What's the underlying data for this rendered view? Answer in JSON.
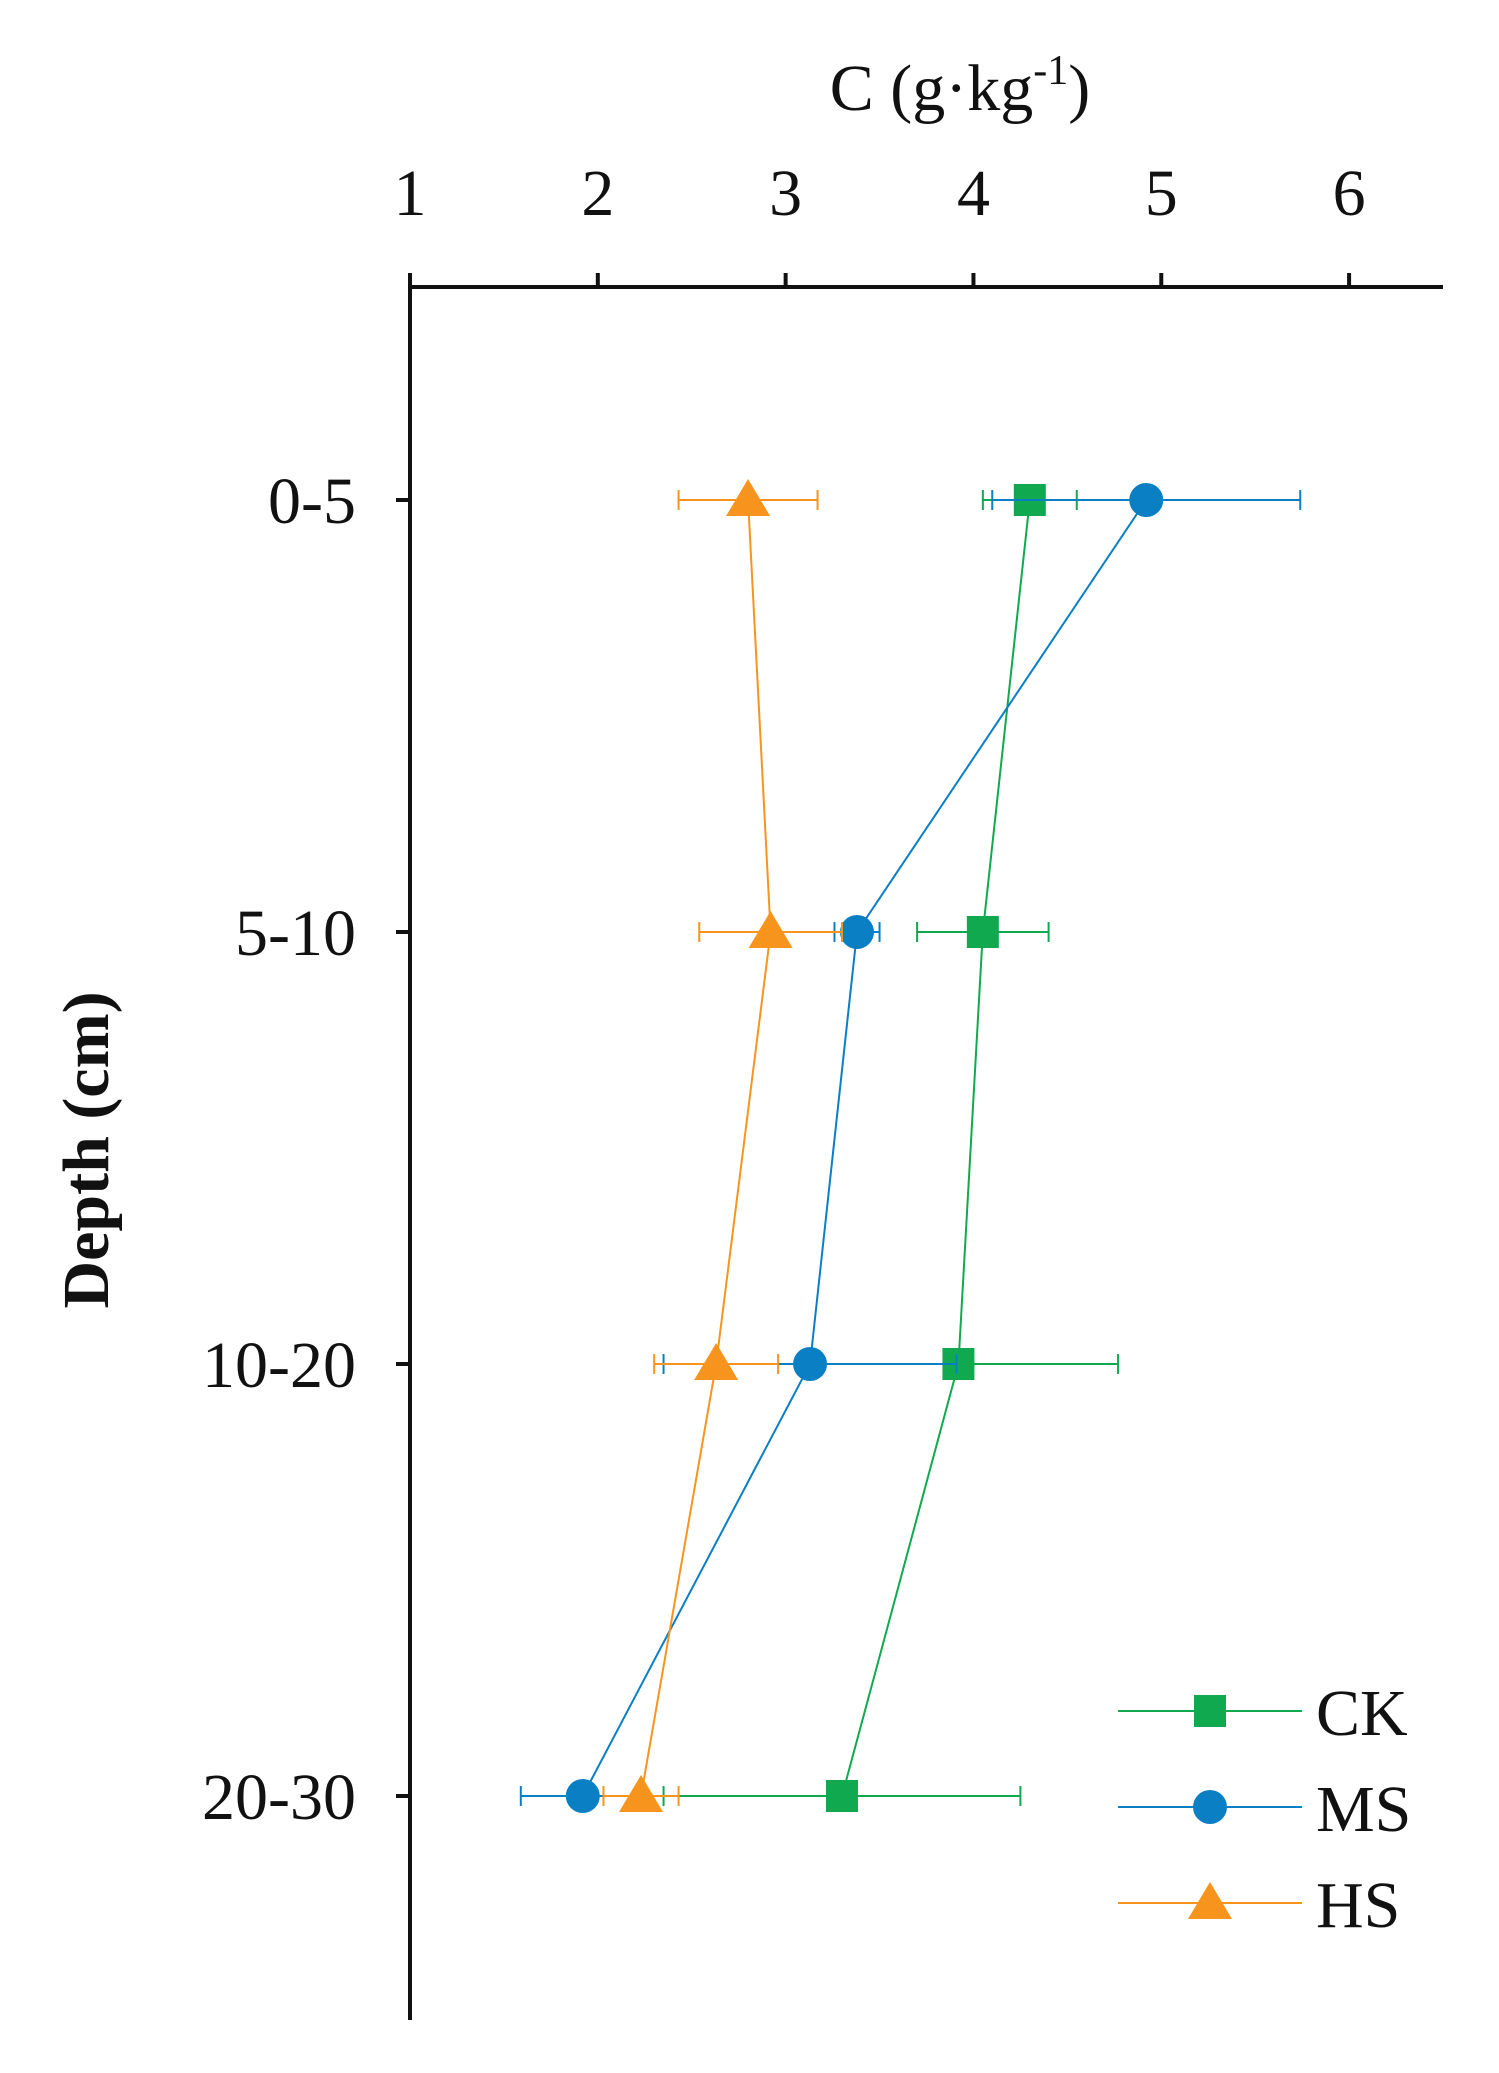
{
  "chart_data": {
    "type": "line",
    "orientation": "x-top, categories-down",
    "title": "",
    "xlabel": "C (g·kg",
    "xlabel_superscript": "-1",
    "xlabel_suffix": ")",
    "ylabel": "Depth (cm)",
    "xlim": [
      1,
      6.5
    ],
    "xticks": [
      1,
      2,
      3,
      4,
      5,
      6
    ],
    "xtick_labels": [
      "1",
      "2",
      "3",
      "4",
      "5",
      "6"
    ],
    "categories": [
      "0-5",
      "5-10",
      "10-20",
      "20-30"
    ],
    "grid": false,
    "legend_position": "bottom-right",
    "series": [
      {
        "name": "CK",
        "color": "#11A94F",
        "marker": "square",
        "values": [
          4.3,
          4.05,
          3.92,
          3.3
        ],
        "errors": [
          0.25,
          0.35,
          0.85,
          0.95
        ]
      },
      {
        "name": "MS",
        "color": "#0A7FC4",
        "marker": "circle",
        "values": [
          4.92,
          3.38,
          3.13,
          1.92
        ],
        "errors": [
          0.82,
          0.12,
          0.78,
          0.33
        ]
      },
      {
        "name": "HS",
        "color": "#F7941D",
        "marker": "triangle",
        "values": [
          2.8,
          2.92,
          2.63,
          2.23
        ],
        "errors": [
          0.37,
          0.38,
          0.33,
          0.2
        ]
      }
    ]
  }
}
